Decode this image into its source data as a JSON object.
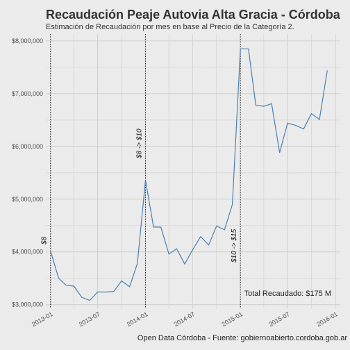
{
  "chart_data": {
    "type": "line",
    "title": "Recaudación Peaje Autovia Alta Gracia - Córdoba",
    "subtitle": "Estimación de Recaudación por mes en base al Precio de la Categoría 2.",
    "caption": "Open Data Córdoba - Fuente: gobiernoabierto.cordoba.gob.ar",
    "total_label": "Total Recaudado: $175 M",
    "xlabel": "",
    "ylabel": "",
    "ylim": [
      2930000,
      8130000
    ],
    "xlim": [
      "2012-12-14",
      "2016-01-20"
    ],
    "y_ticks": [
      3000000,
      4000000,
      5000000,
      6000000,
      7000000,
      8000000
    ],
    "y_tick_labels": [
      "$3,000,000",
      "$4,000,000",
      "$5,000,000",
      "$6,000,000",
      "$7,000,000",
      "$8,000,000"
    ],
    "x_ticks": [
      "2013-01-01",
      "2013-07-01",
      "2014-01-01",
      "2014-07-01",
      "2015-01-01",
      "2015-07-01",
      "2016-01-01"
    ],
    "x_tick_labels": [
      "2013-01",
      "2013-07",
      "2014-01",
      "2014-07",
      "2015-01",
      "2015-07",
      "2016-01"
    ],
    "grid": true,
    "price_changes": [
      {
        "date": "2013-01-01",
        "label": "$8"
      },
      {
        "date": "2014-01-01",
        "label": "$8 -> $10"
      },
      {
        "date": "2015-01-01",
        "label": "$10 -> $15"
      }
    ],
    "series": [
      {
        "x": [
          "2013-01-01",
          "2013-02-01",
          "2013-03-01",
          "2013-04-01",
          "2013-05-01",
          "2013-06-01",
          "2013-07-01",
          "2013-08-01",
          "2013-09-01",
          "2013-10-01",
          "2013-11-01",
          "2013-12-01",
          "2014-01-01",
          "2014-02-01",
          "2014-03-01",
          "2014-04-01",
          "2014-05-01",
          "2014-06-01",
          "2014-07-01",
          "2014-08-01",
          "2014-09-01",
          "2014-10-01",
          "2014-11-01",
          "2014-12-01",
          "2015-01-01",
          "2015-02-01",
          "2015-03-01",
          "2015-04-01",
          "2015-05-01",
          "2015-06-01",
          "2015-07-01",
          "2015-08-01",
          "2015-09-01",
          "2015-10-01",
          "2015-11-01",
          "2015-12-01"
        ],
        "values": [
          4020000,
          3500000,
          3370000,
          3350000,
          3140000,
          3080000,
          3240000,
          3240000,
          3250000,
          3450000,
          3340000,
          3780000,
          5360000,
          4470000,
          4470000,
          3960000,
          4060000,
          3770000,
          4040000,
          4290000,
          4130000,
          4490000,
          4420000,
          4900000,
          7850000,
          7850000,
          6780000,
          6760000,
          6810000,
          5880000,
          6440000,
          6400000,
          6330000,
          6620000,
          6510000,
          7440000
        ]
      }
    ]
  }
}
